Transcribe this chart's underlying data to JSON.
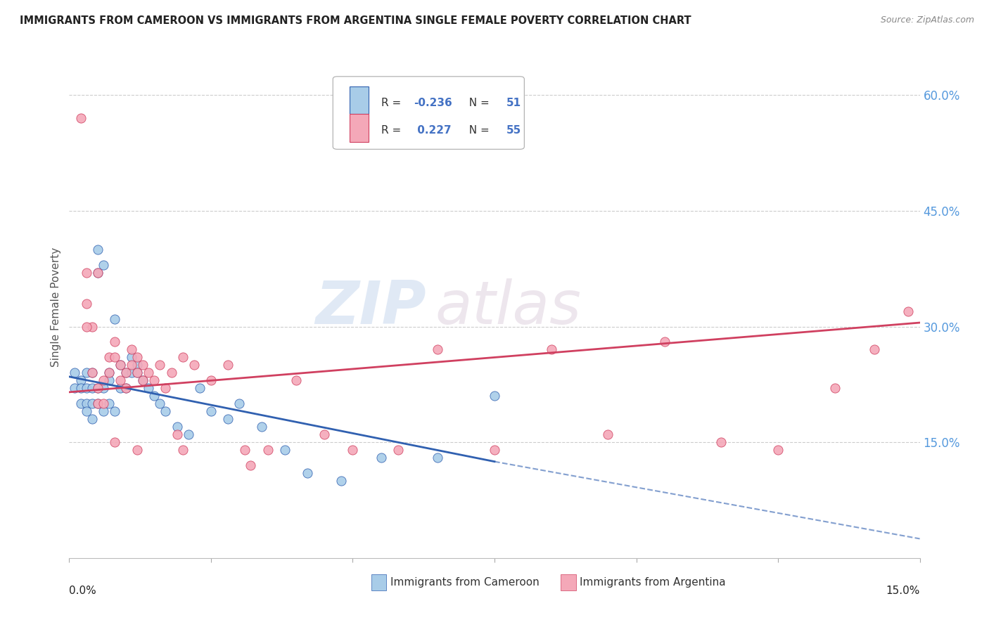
{
  "title": "IMMIGRANTS FROM CAMEROON VS IMMIGRANTS FROM ARGENTINA SINGLE FEMALE POVERTY CORRELATION CHART",
  "source": "Source: ZipAtlas.com",
  "ylabel": "Single Female Poverty",
  "right_yticks": [
    0.15,
    0.3,
    0.45,
    0.6
  ],
  "right_ytick_labels": [
    "15.0%",
    "30.0%",
    "45.0%",
    "60.0%"
  ],
  "xlim": [
    0.0,
    0.15
  ],
  "ylim": [
    0.0,
    0.65
  ],
  "legend_R_cameroon": "-0.236",
  "legend_N_cameroon": "51",
  "legend_R_argentina": "0.227",
  "legend_N_argentina": "55",
  "color_cameroon": "#a8cce8",
  "color_argentina": "#f4a8b8",
  "color_trend_cameroon": "#3060b0",
  "color_trend_argentina": "#d04060",
  "watermark_zip": "ZIP",
  "watermark_atlas": "atlas",
  "cameroon_x": [
    0.001,
    0.001,
    0.002,
    0.002,
    0.002,
    0.003,
    0.003,
    0.003,
    0.003,
    0.004,
    0.004,
    0.004,
    0.004,
    0.005,
    0.005,
    0.005,
    0.005,
    0.006,
    0.006,
    0.006,
    0.007,
    0.007,
    0.007,
    0.008,
    0.008,
    0.009,
    0.009,
    0.01,
    0.01,
    0.011,
    0.011,
    0.012,
    0.012,
    0.013,
    0.014,
    0.015,
    0.016,
    0.017,
    0.019,
    0.021,
    0.023,
    0.025,
    0.028,
    0.03,
    0.034,
    0.038,
    0.042,
    0.048,
    0.055,
    0.065,
    0.075
  ],
  "cameroon_y": [
    0.24,
    0.22,
    0.23,
    0.22,
    0.2,
    0.24,
    0.22,
    0.2,
    0.19,
    0.24,
    0.22,
    0.2,
    0.18,
    0.4,
    0.37,
    0.22,
    0.2,
    0.38,
    0.22,
    0.19,
    0.24,
    0.23,
    0.2,
    0.31,
    0.19,
    0.25,
    0.22,
    0.24,
    0.22,
    0.26,
    0.24,
    0.25,
    0.24,
    0.23,
    0.22,
    0.21,
    0.2,
    0.19,
    0.17,
    0.16,
    0.22,
    0.19,
    0.18,
    0.2,
    0.17,
    0.14,
    0.11,
    0.1,
    0.13,
    0.13,
    0.21
  ],
  "argentina_x": [
    0.002,
    0.003,
    0.003,
    0.004,
    0.004,
    0.005,
    0.005,
    0.005,
    0.006,
    0.006,
    0.007,
    0.007,
    0.008,
    0.008,
    0.009,
    0.009,
    0.01,
    0.01,
    0.011,
    0.011,
    0.012,
    0.012,
    0.013,
    0.013,
    0.014,
    0.015,
    0.016,
    0.017,
    0.018,
    0.019,
    0.02,
    0.022,
    0.025,
    0.028,
    0.031,
    0.035,
    0.04,
    0.045,
    0.05,
    0.058,
    0.065,
    0.075,
    0.085,
    0.095,
    0.105,
    0.115,
    0.125,
    0.135,
    0.142,
    0.148,
    0.003,
    0.008,
    0.012,
    0.02,
    0.032
  ],
  "argentina_y": [
    0.57,
    0.37,
    0.33,
    0.3,
    0.24,
    0.37,
    0.22,
    0.2,
    0.23,
    0.2,
    0.26,
    0.24,
    0.28,
    0.26,
    0.25,
    0.23,
    0.24,
    0.22,
    0.27,
    0.25,
    0.26,
    0.24,
    0.25,
    0.23,
    0.24,
    0.23,
    0.25,
    0.22,
    0.24,
    0.16,
    0.26,
    0.25,
    0.23,
    0.25,
    0.14,
    0.14,
    0.23,
    0.16,
    0.14,
    0.14,
    0.27,
    0.14,
    0.27,
    0.16,
    0.28,
    0.15,
    0.14,
    0.22,
    0.27,
    0.32,
    0.3,
    0.15,
    0.14,
    0.14,
    0.12
  ],
  "trend_cam_x0": 0.0,
  "trend_cam_y0": 0.235,
  "trend_cam_x1": 0.075,
  "trend_cam_y1": 0.125,
  "trend_cam_xdash": 0.15,
  "trend_cam_ydash": 0.025,
  "trend_arg_x0": 0.0,
  "trend_arg_y0": 0.215,
  "trend_arg_x1": 0.15,
  "trend_arg_y1": 0.305
}
